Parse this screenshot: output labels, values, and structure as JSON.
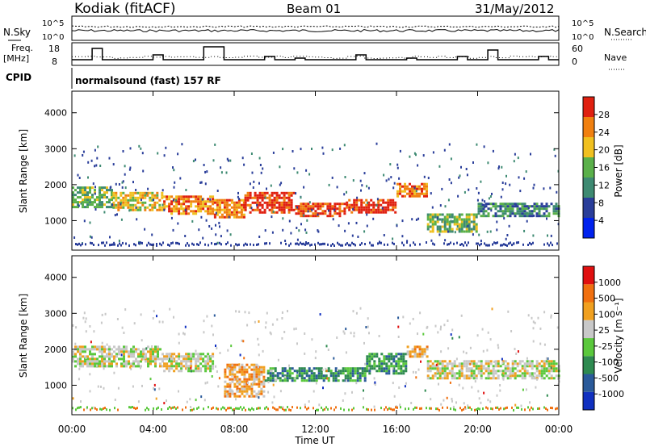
{
  "header": {
    "station": "Kodiak (fitACF)",
    "beam": "Beam 01",
    "date": "31/May/2012",
    "cpid_label": "CPID",
    "mode": "normalsound (fast) 157 RF"
  },
  "subpanels": {
    "nsky_label": "N.Sky",
    "nsky_ticks": [
      "10^5",
      "10^0"
    ],
    "nsearch_label": "N.Search",
    "nsearch_ticks": [
      "10^5",
      "10^0"
    ],
    "freq_label_1": "Freq.",
    "freq_label_2": "[MHz]",
    "freq_ticks": [
      "18",
      "8"
    ],
    "nave_label": "Nave",
    "nave_ticks": [
      "60",
      "0"
    ]
  },
  "chart_data": [
    {
      "type": "heatmap",
      "name": "power",
      "ylabel": "Slant Range [km]",
      "y_ticks": [
        "1000",
        "2000",
        "3000",
        "4000"
      ],
      "ylim": [
        180,
        4600
      ],
      "colorbar_label": "Power [dB]",
      "colorbar_ticks": [
        "4",
        "8",
        "12",
        "16",
        "20",
        "24",
        "28"
      ],
      "colors": [
        "#0022ee",
        "#2a3e9a",
        "#3e8a72",
        "#5ab04a",
        "#f0c020",
        "#f08010",
        "#e02010"
      ],
      "bands": [
        {
          "x0": 0.0,
          "x1": 2.0,
          "r0": 1350,
          "r1": 1950,
          "lvl": 3
        },
        {
          "x0": 2.0,
          "x1": 4.5,
          "r0": 1300,
          "r1": 1800,
          "lvl": 4
        },
        {
          "x0": 4.5,
          "x1": 7.0,
          "r0": 1200,
          "r1": 1700,
          "lvl": 5
        },
        {
          "x0": 7.0,
          "x1": 8.5,
          "r0": 1100,
          "r1": 1600,
          "lvl": 5
        },
        {
          "x0": 8.5,
          "x1": 11.0,
          "r0": 1200,
          "r1": 1800,
          "lvl": 6
        },
        {
          "x0": 11.0,
          "x1": 13.5,
          "r0": 1100,
          "r1": 1500,
          "lvl": 6
        },
        {
          "x0": 13.5,
          "x1": 16.0,
          "r0": 1200,
          "r1": 1600,
          "lvl": 6
        },
        {
          "x0": 16.0,
          "x1": 17.5,
          "r0": 1700,
          "r1": 2050,
          "lvl": 5
        },
        {
          "x0": 17.5,
          "x1": 20.0,
          "r0": 700,
          "r1": 1200,
          "lvl": 3
        },
        {
          "x0": 20.0,
          "x1": 24.0,
          "r0": 1100,
          "r1": 1500,
          "lvl": 2
        }
      ]
    },
    {
      "type": "heatmap",
      "name": "velocity",
      "ylabel": "Slant Range [km]",
      "y_ticks": [
        "1000",
        "2000",
        "3000",
        "4000"
      ],
      "ylim": [
        180,
        4600
      ],
      "xlabel": "Time UT",
      "x_ticks": [
        "00:00",
        "04:00",
        "08:00",
        "12:00",
        "16:00",
        "20:00",
        "00:00"
      ],
      "x_range_hours": [
        0,
        24
      ],
      "colorbar_label": "Velocity [m s⁻¹]",
      "colorbar_ticks": [
        "1000",
        "500",
        "100",
        "25",
        "-25",
        "-100",
        "-500",
        "-1000"
      ],
      "colors": [
        "#1030c0",
        "#2a5a9a",
        "#2e8a50",
        "#5ac83c",
        "#c8c8c8",
        "#f0a020",
        "#f07010",
        "#e01010"
      ],
      "bands": [
        {
          "x0": 0.0,
          "x1": 4.5,
          "r0": 1500,
          "r1": 2100,
          "lvl": 4
        },
        {
          "x0": 4.5,
          "x1": 7.0,
          "r0": 1400,
          "r1": 1900,
          "lvl": 4
        },
        {
          "x0": 7.5,
          "x1": 9.5,
          "r0": 700,
          "r1": 1600,
          "lvl": 5
        },
        {
          "x0": 9.5,
          "x1": 14.5,
          "r0": 1100,
          "r1": 1500,
          "lvl": 2
        },
        {
          "x0": 14.5,
          "x1": 16.5,
          "r0": 1300,
          "r1": 1900,
          "lvl": 2
        },
        {
          "x0": 16.5,
          "x1": 17.5,
          "r0": 1800,
          "r1": 2100,
          "lvl": 5
        },
        {
          "x0": 17.5,
          "x1": 24.0,
          "r0": 1200,
          "r1": 1700,
          "lvl": 4
        }
      ]
    }
  ]
}
